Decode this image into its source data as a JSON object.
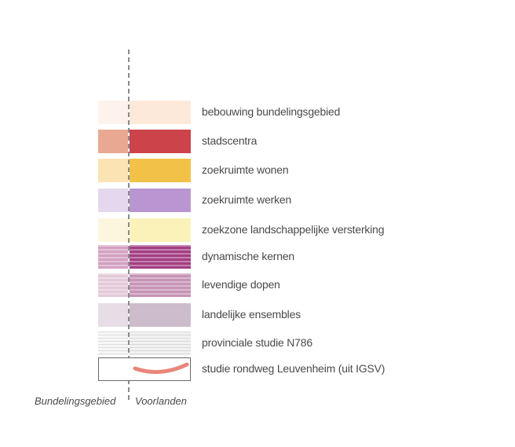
{
  "legend": {
    "items": [
      {
        "label": "bebouwing bundelingsgebied",
        "left_color": "#fdf3ec",
        "right_color": "#fde9d9",
        "pattern": "solid"
      },
      {
        "label": "stadscentra",
        "left_color": "#e8a891",
        "right_color": "#cc4349",
        "pattern": "solid"
      },
      {
        "label": "zoekruimte wonen",
        "left_color": "#fbe3b3",
        "right_color": "#f2c248",
        "pattern": "solid"
      },
      {
        "label": "zoekruimte werken",
        "left_color": "#e5d8ee",
        "right_color": "#b996d1",
        "pattern": "solid"
      },
      {
        "label": "zoekzone landschappelijke versterking",
        "left_color": "#fdf6df",
        "right_color": "#faf2b8",
        "pattern": "solid"
      },
      {
        "label": "dynamische kernen",
        "left_color": "#d4a2c2",
        "right_color": "#a43f84",
        "pattern": "striped"
      },
      {
        "label": "levendige dopen",
        "left_color": "#e3cad9",
        "right_color": "#c694b6",
        "pattern": "striped"
      },
      {
        "label": "landelijke ensembles",
        "left_color": "#e6dde6",
        "right_color": "#cdbccb",
        "pattern": "solid"
      },
      {
        "label": "provinciale studie N786",
        "left_color": "#f7f7f7",
        "right_color": "#f1f1f1",
        "pattern": "striped-light"
      },
      {
        "label": "studie rondweg Leuvenheim (uit IGSV)",
        "line_color": "#e8867a",
        "pattern": "road"
      }
    ]
  },
  "footer": {
    "left_label": "Bundelingsgebied",
    "right_label": "Voorlanden"
  }
}
